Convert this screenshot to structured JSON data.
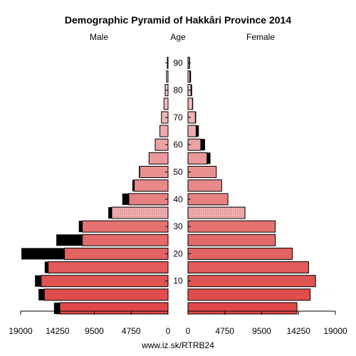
{
  "chart_data": {
    "type": "bar",
    "title": "Demographic Pyramid of Hakkâri Province 2014",
    "left_label": "Male",
    "center_label": "Age",
    "right_label": "Female",
    "source": "www.iz.sk/RTRB24",
    "xlim": [
      0,
      19000
    ],
    "x_ticks": [
      0,
      4750,
      9500,
      14250,
      19000
    ],
    "x_tick_labels_left": [
      "19000",
      "14250",
      "9500",
      "4750",
      "0"
    ],
    "x_tick_labels_right": [
      "0",
      "4750",
      "9500",
      "14250",
      "19000"
    ],
    "age_ticks": [
      10,
      20,
      30,
      40,
      50,
      60,
      70,
      80,
      90
    ],
    "age_groups": [
      "0-4",
      "5-9",
      "10-14",
      "15-19",
      "20-24",
      "25-29",
      "30-34",
      "35-39",
      "40-44",
      "45-49",
      "50-54",
      "55-59",
      "60-64",
      "65-69",
      "70-74",
      "75-79",
      "80-84",
      "85-89",
      "90+"
    ],
    "series": [
      {
        "name": "Male",
        "values": [
          13950,
          15950,
          16350,
          15450,
          13350,
          11050,
          11050,
          7250,
          5050,
          4350,
          3650,
          2450,
          1650,
          1050,
          850,
          520,
          370,
          190,
          90
        ]
      },
      {
        "name": "Male excess",
        "values": [
          750,
          750,
          800,
          450,
          5550,
          3350,
          450,
          450,
          850,
          250,
          100,
          0,
          0,
          0,
          0,
          0,
          0,
          0,
          0
        ]
      },
      {
        "name": "Female",
        "values": [
          14050,
          15750,
          16450,
          15550,
          13450,
          11250,
          11250,
          7350,
          5150,
          4350,
          3650,
          2450,
          1650,
          1050,
          950,
          580,
          390,
          240,
          160
        ]
      },
      {
        "name": "Female excess",
        "values": [
          0,
          0,
          0,
          0,
          0,
          0,
          0,
          0,
          0,
          0,
          0,
          450,
          550,
          350,
          100,
          80,
          140,
          150,
          90
        ]
      }
    ],
    "colors": {
      "young": "#e04848",
      "old": "#f2d8d8",
      "excess": "#000000",
      "dotted_age_group": "35-39"
    },
    "grid": false
  }
}
